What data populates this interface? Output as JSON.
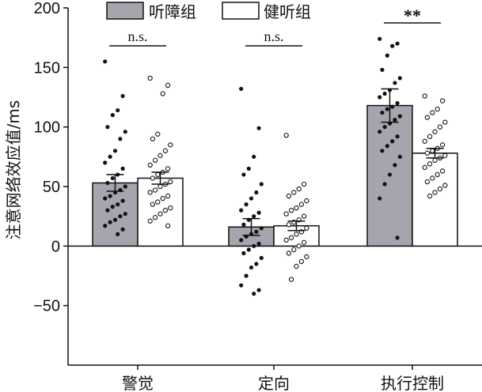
{
  "chart_data": {
    "type": "bar",
    "ylabel": "注意网络效应值/ms",
    "ylim": [
      -100,
      200
    ],
    "yticks": [
      -50,
      0,
      50,
      100,
      150,
      200
    ],
    "categories": [
      "警觉",
      "定向",
      "执行控制"
    ],
    "series": [
      {
        "name": "听障组",
        "color": "#a7a4ad",
        "values": [
          53,
          16,
          118
        ],
        "sem": [
          7,
          7,
          14
        ],
        "points": [
          [
            155,
            126,
            114,
            110,
            100,
            96,
            90,
            80,
            75,
            70,
            65,
            60,
            57,
            53,
            50,
            47,
            45,
            42,
            40,
            38,
            35,
            33,
            30,
            27,
            25,
            22,
            20,
            17,
            14,
            10
          ],
          [
            132,
            99,
            75,
            65,
            60,
            52,
            45,
            40,
            35,
            30,
            28,
            25,
            22,
            18,
            15,
            12,
            10,
            8,
            5,
            2,
            0,
            -3,
            -6,
            -10,
            -15,
            -18,
            -25,
            -33,
            -37,
            -40
          ],
          [
            174,
            170,
            168,
            160,
            148,
            141,
            137,
            131,
            128,
            125,
            120,
            117,
            115,
            112,
            109,
            106,
            103,
            100,
            96,
            92,
            88,
            84,
            80,
            75,
            68,
            60,
            52,
            40,
            7
          ]
        ]
      },
      {
        "name": "健听组",
        "color": "#ffffff",
        "values": [
          57,
          17,
          78
        ],
        "sem": [
          5,
          4,
          4
        ],
        "points": [
          [
            141,
            135,
            128,
            94,
            90,
            85,
            80,
            76,
            72,
            68,
            65,
            62,
            60,
            57,
            54,
            52,
            50,
            47,
            45,
            42,
            40,
            37,
            35,
            32,
            30,
            27,
            24,
            21,
            17
          ],
          [
            93,
            52,
            48,
            45,
            42,
            38,
            35,
            32,
            30,
            27,
            25,
            22,
            20,
            18,
            15,
            12,
            10,
            7,
            5,
            3,
            0,
            -3,
            -6,
            -9,
            -13,
            -17,
            -28
          ],
          [
            126,
            122,
            115,
            112,
            108,
            104,
            100,
            96,
            92,
            88,
            85,
            82,
            80,
            78,
            76,
            74,
            72,
            69,
            66,
            63,
            60,
            57,
            54,
            51,
            48,
            45,
            42
          ]
        ]
      }
    ],
    "significance": [
      "n.s.",
      "n.s.",
      "**"
    ]
  }
}
